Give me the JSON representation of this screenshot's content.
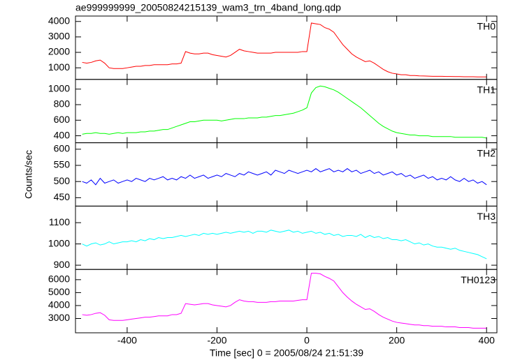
{
  "chart_data": {
    "type": "line",
    "title": "ae999999999_20050824215139_wam3_trn_4band_long.qdp",
    "xlabel": "Time [sec] 0 = 2005/08/24 21:51:39",
    "ylabel": "Counts/sec",
    "xlim": [
      -515,
      423
    ],
    "xticks": [
      -400,
      -200,
      0,
      200,
      400
    ],
    "x": [
      -500,
      -490,
      -480,
      -470,
      -460,
      -450,
      -440,
      -430,
      -420,
      -410,
      -400,
      -390,
      -380,
      -370,
      -360,
      -350,
      -340,
      -330,
      -320,
      -310,
      -300,
      -290,
      -280,
      -270,
      -260,
      -250,
      -240,
      -230,
      -220,
      -210,
      -200,
      -190,
      -180,
      -170,
      -160,
      -150,
      -140,
      -130,
      -120,
      -110,
      -100,
      -90,
      -80,
      -70,
      -60,
      -50,
      -40,
      -30,
      -20,
      -10,
      0,
      10,
      20,
      30,
      40,
      50,
      60,
      70,
      80,
      90,
      100,
      110,
      120,
      130,
      140,
      150,
      160,
      170,
      180,
      190,
      200,
      210,
      220,
      230,
      240,
      250,
      260,
      270,
      280,
      290,
      300,
      310,
      320,
      330,
      340,
      350,
      360,
      370,
      380,
      390,
      400
    ],
    "panels": [
      {
        "name": "TH0",
        "color": "#ff0000",
        "ylim": [
          250,
          4350
        ],
        "yticks": [
          1000,
          2000,
          3000,
          4000
        ],
        "values": [
          1350,
          1300,
          1350,
          1450,
          1500,
          1300,
          1000,
          950,
          950,
          950,
          1000,
          1050,
          1100,
          1100,
          1150,
          1150,
          1200,
          1200,
          1200,
          1200,
          1250,
          1250,
          1300,
          2050,
          1950,
          1900,
          1900,
          1950,
          1950,
          1850,
          1800,
          1750,
          1700,
          1800,
          2000,
          2200,
          2100,
          2050,
          2000,
          1950,
          1950,
          1950,
          1950,
          2000,
          2000,
          2000,
          2000,
          2000,
          2000,
          2050,
          2050,
          3900,
          3850,
          3800,
          3600,
          3500,
          3300,
          2900,
          2500,
          2200,
          1900,
          1700,
          1550,
          1400,
          1450,
          1300,
          1100,
          900,
          750,
          650,
          600,
          550,
          550,
          500,
          500,
          480,
          470,
          460,
          450,
          450,
          450,
          440,
          440,
          430,
          430,
          420,
          420,
          420,
          410,
          410,
          410
        ]
      },
      {
        "name": "TH1",
        "color": "#00ff00",
        "ylim": [
          310,
          1125
        ],
        "yticks": [
          400,
          600,
          800,
          1000
        ],
        "values": [
          420,
          430,
          430,
          440,
          430,
          430,
          420,
          430,
          440,
          430,
          440,
          440,
          440,
          450,
          450,
          460,
          460,
          470,
          480,
          480,
          500,
          520,
          540,
          560,
          580,
          580,
          590,
          600,
          600,
          600,
          600,
          590,
          600,
          610,
          620,
          620,
          620,
          630,
          630,
          630,
          640,
          640,
          650,
          660,
          660,
          670,
          680,
          690,
          710,
          730,
          760,
          950,
          1020,
          1040,
          1030,
          1010,
          990,
          960,
          920,
          880,
          840,
          800,
          760,
          710,
          660,
          610,
          560,
          520,
          490,
          460,
          440,
          430,
          420,
          410,
          410,
          400,
          400,
          400,
          390,
          390,
          390,
          390,
          390,
          380,
          380,
          380,
          380,
          380,
          380,
          380,
          370
        ]
      },
      {
        "name": "TH2",
        "color": "#0000ff",
        "ylim": [
          424,
          620
        ],
        "yticks": [
          450,
          500,
          550,
          600
        ],
        "values": [
          500,
          495,
          505,
          490,
          510,
          495,
          500,
          505,
          495,
          500,
          505,
          500,
          510,
          505,
          500,
          510,
          505,
          510,
          515,
          505,
          510,
          505,
          515,
          510,
          520,
          510,
          515,
          520,
          510,
          515,
          520,
          515,
          525,
          520,
          515,
          525,
          520,
          530,
          525,
          520,
          525,
          530,
          520,
          535,
          530,
          525,
          535,
          530,
          525,
          530,
          535,
          530,
          540,
          530,
          535,
          540,
          530,
          535,
          530,
          540,
          530,
          535,
          525,
          530,
          535,
          525,
          530,
          520,
          525,
          530,
          520,
          525,
          515,
          520,
          510,
          515,
          520,
          510,
          515,
          505,
          510,
          505,
          515,
          505,
          500,
          510,
          500,
          505,
          495,
          500,
          490
        ]
      },
      {
        "name": "TH3",
        "color": "#00ffff",
        "ylim": [
          880,
          1178
        ],
        "yticks": [
          900,
          1000,
          1100
        ],
        "values": [
          1000,
          990,
          1000,
          1005,
          995,
          1000,
          1010,
          1000,
          1005,
          1010,
          1010,
          1015,
          1010,
          1020,
          1015,
          1025,
          1020,
          1030,
          1025,
          1030,
          1030,
          1035,
          1040,
          1035,
          1040,
          1045,
          1040,
          1050,
          1045,
          1050,
          1045,
          1050,
          1055,
          1050,
          1055,
          1060,
          1055,
          1060,
          1050,
          1060,
          1060,
          1055,
          1065,
          1060,
          1055,
          1060,
          1065,
          1055,
          1060,
          1050,
          1055,
          1060,
          1050,
          1055,
          1045,
          1050,
          1040,
          1045,
          1035,
          1040,
          1040,
          1035,
          1045,
          1030,
          1040,
          1030,
          1035,
          1025,
          1030,
          1020,
          1020,
          1015,
          1020,
          1010,
          1000,
          1005,
          995,
          1000,
          990,
          985,
          985,
          980,
          975,
          980,
          970,
          965,
          960,
          955,
          950,
          940,
          930
        ]
      },
      {
        "name": "TH0123",
        "color": "#ff00ff",
        "ylim": [
          1895,
          6790
        ],
        "yticks": [
          3000,
          4000,
          5000,
          6000
        ],
        "values": [
          3300,
          3250,
          3300,
          3400,
          3450,
          3250,
          2900,
          2850,
          2850,
          2850,
          2900,
          2950,
          3000,
          3050,
          3100,
          3100,
          3150,
          3200,
          3200,
          3200,
          3300,
          3300,
          3400,
          4150,
          4100,
          4050,
          4100,
          4150,
          4150,
          4050,
          4000,
          3950,
          3900,
          4000,
          4250,
          4450,
          4350,
          4300,
          4300,
          4250,
          4250,
          4250,
          4300,
          4300,
          4350,
          4350,
          4350,
          4350,
          4400,
          4450,
          4450,
          6500,
          6500,
          6450,
          6250,
          6100,
          5900,
          5450,
          5000,
          4650,
          4350,
          4100,
          3900,
          3700,
          3750,
          3550,
          3300,
          3100,
          2950,
          2800,
          2700,
          2650,
          2600,
          2550,
          2500,
          2500,
          2450,
          2450,
          2400,
          2400,
          2400,
          2350,
          2350,
          2350,
          2300,
          2300,
          2300,
          2250,
          2250,
          2250,
          2250
        ]
      }
    ]
  }
}
